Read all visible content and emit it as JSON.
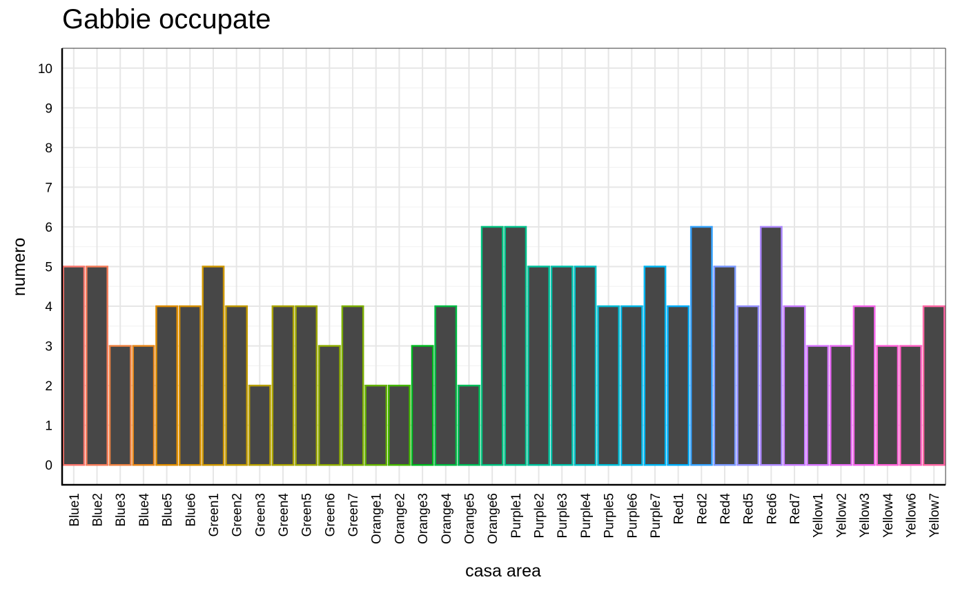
{
  "chart_data": {
    "type": "bar",
    "title": "Gabbie occupate",
    "xlabel": "casa area",
    "ylabel": "numero",
    "ylim": [
      -0.5,
      10.5
    ],
    "yticks": [
      0,
      1,
      2,
      3,
      4,
      5,
      6,
      7,
      8,
      9,
      10
    ],
    "grid": true,
    "legend": "none",
    "fill_color": "#474747",
    "grid_color": "#e6e6e6",
    "categories": [
      "Blue1",
      "Blue2",
      "Blue3",
      "Blue4",
      "Blue5",
      "Blue6",
      "Green1",
      "Green2",
      "Green3",
      "Green4",
      "Green5",
      "Green6",
      "Green7",
      "Orange1",
      "Orange2",
      "Orange3",
      "Orange4",
      "Orange5",
      "Orange6",
      "Purple1",
      "Purple2",
      "Purple3",
      "Purple4",
      "Purple5",
      "Purple6",
      "Purple7",
      "Red1",
      "Red2",
      "Red4",
      "Red5",
      "Red6",
      "Red7",
      "Yellow1",
      "Yellow2",
      "Yellow3",
      "Yellow4",
      "Yellow6",
      "Yellow7"
    ],
    "values": [
      5,
      5,
      3,
      3,
      4,
      4,
      5,
      4,
      2,
      4,
      4,
      3,
      4,
      2,
      2,
      3,
      4,
      2,
      6,
      6,
      5,
      5,
      5,
      4,
      4,
      5,
      4,
      6,
      5,
      4,
      6,
      4,
      3,
      3,
      4,
      3,
      3,
      4
    ],
    "outline_colors": [
      "#F8766D",
      "#F37B59",
      "#ED8141",
      "#E7861B",
      "#DF8C00",
      "#D79000",
      "#CD9600",
      "#C29A00",
      "#B79F00",
      "#AAA300",
      "#9DA700",
      "#8EAB00",
      "#7CAE00",
      "#64B200",
      "#45B500",
      "#00B81F",
      "#00BA42",
      "#00BC59",
      "#00BF7D",
      "#00C08B",
      "#00C19C",
      "#00C1AA",
      "#00BFC4",
      "#00BCD5",
      "#00B8E7",
      "#00B4F0",
      "#00ADFA",
      "#35A2FF",
      "#7997FF",
      "#9590FF",
      "#AC88FF",
      "#C77CFF",
      "#D575FE",
      "#E76BF3",
      "#F265E8",
      "#FC61D5",
      "#FF61C3",
      "#FF67A4"
    ]
  }
}
